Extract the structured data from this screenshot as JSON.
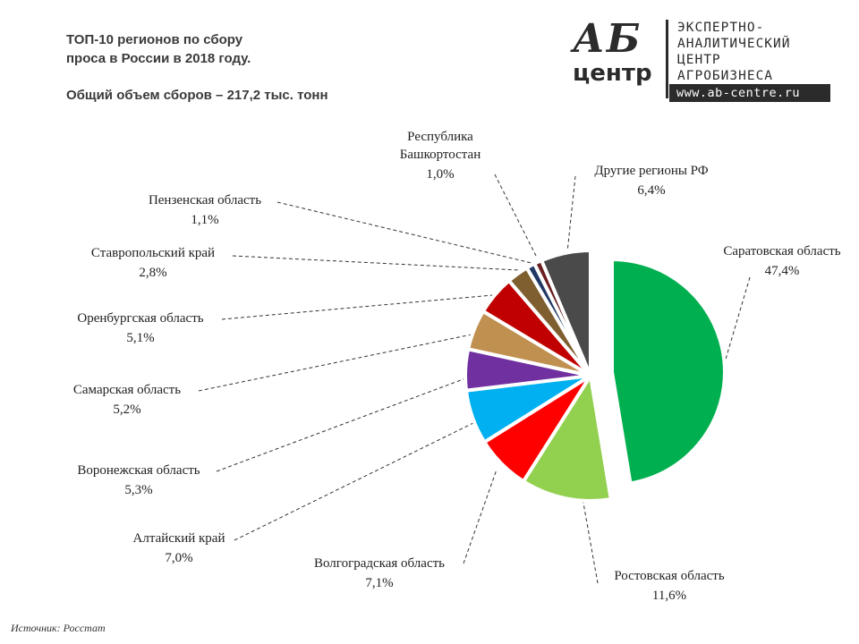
{
  "header": {
    "title_line1": "ТОП-10 регионов по сбору",
    "title_line2": "проса в России в 2018 году.",
    "subtitle": "Общий объем сборов – 217,2 тыс. тонн"
  },
  "logo": {
    "ab": "АБ",
    "centr": "центр",
    "line1": "ЭКСПЕРТНО-",
    "line2": "АНАЛИТИЧЕСКИЙ",
    "line3": "ЦЕНТР",
    "line4": "АГРОБИЗНЕСА",
    "url": "www.ab-centre.ru"
  },
  "source": "Источник:  Росстат",
  "chart_data": {
    "type": "pie",
    "title": "ТОП-10 регионов по сбору проса в России в 2018 году.",
    "slices": [
      {
        "name": "Саратовская область",
        "value": 47.4,
        "label": "47,4%",
        "color": "#00b050"
      },
      {
        "name": "Ростовская область",
        "value": 11.6,
        "label": "11,6%",
        "color": "#92d050"
      },
      {
        "name": "Волгоградская область",
        "value": 7.1,
        "label": "7,1%",
        "color": "#ff0000"
      },
      {
        "name": "Алтайский край",
        "value": 7.0,
        "label": "7,0%",
        "color": "#00b0f0"
      },
      {
        "name": "Воронежская область",
        "value": 5.3,
        "label": "5,3%",
        "color": "#7030a0"
      },
      {
        "name": "Самарская область",
        "value": 5.2,
        "label": "5,2%",
        "color": "#c09050"
      },
      {
        "name": "Оренбургская область",
        "value": 5.1,
        "label": "5,1%",
        "color": "#c00000"
      },
      {
        "name": "Ставропольский край",
        "value": 2.8,
        "label": "2,8%",
        "color": "#7f5f2f"
      },
      {
        "name": "Пензенская область",
        "value": 1.1,
        "label": "1,1%",
        "color": "#203864"
      },
      {
        "name": "Республика Башкортостан",
        "value": 1.0,
        "label": "1,0%",
        "color": "#6b1f1f"
      },
      {
        "name": "Другие регионы РФ",
        "value": 6.4,
        "label": "6,4%",
        "color": "#4a4a4a"
      }
    ]
  }
}
